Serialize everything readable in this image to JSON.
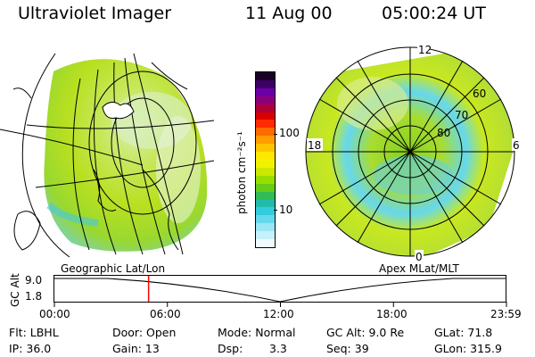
{
  "header": {
    "instrument": "Ultraviolet Imager",
    "date": "11 Aug 00",
    "time": "05:00:24 UT"
  },
  "left_panel": {
    "caption": "Geographic Lat/Lon"
  },
  "right_panel": {
    "caption": "Apex MLat/MLT",
    "mlt_labels": [
      "12",
      "18",
      "6",
      "0"
    ],
    "lat_labels": [
      "60",
      "70",
      "80"
    ]
  },
  "colorbar": {
    "unit_label": "photon cm⁻²s⁻¹",
    "ticks": [
      "100",
      "10"
    ],
    "colors_top_to_bottom": [
      "#1a0026",
      "#3d0066",
      "#6b00a8",
      "#8a0078",
      "#b0003a",
      "#d80000",
      "#ff2a00",
      "#ff6a00",
      "#ff9c00",
      "#ffc400",
      "#ffe800",
      "#f2f200",
      "#cce800",
      "#99dd00",
      "#66cc1a",
      "#33bb55",
      "#22bbaa",
      "#33ccdd",
      "#66d8ee",
      "#99e6f5",
      "#c8f0fa",
      "#eefaff"
    ]
  },
  "altitude_strip": {
    "axis_label": "GC Alt",
    "y_ticks": [
      "9.0",
      "1.8"
    ],
    "x_ticks": [
      "00:00",
      "06:00",
      "12:00",
      "18:00",
      "23:59"
    ],
    "current_time_hours": 5.0
  },
  "info": {
    "flt": "Flt: LBHL",
    "ip": "IP: 36.0",
    "door": "Door: Open",
    "gain": "Gain: 13",
    "mode": "Mode: Normal",
    "dsp_label": "Dsp:",
    "dsp_value": "3.3",
    "gc_alt": "GC Alt: 9.0 Re",
    "seq": "Seq: 39",
    "glat": "GLat: 71.8",
    "glon": "GLon: 315.9"
  }
}
